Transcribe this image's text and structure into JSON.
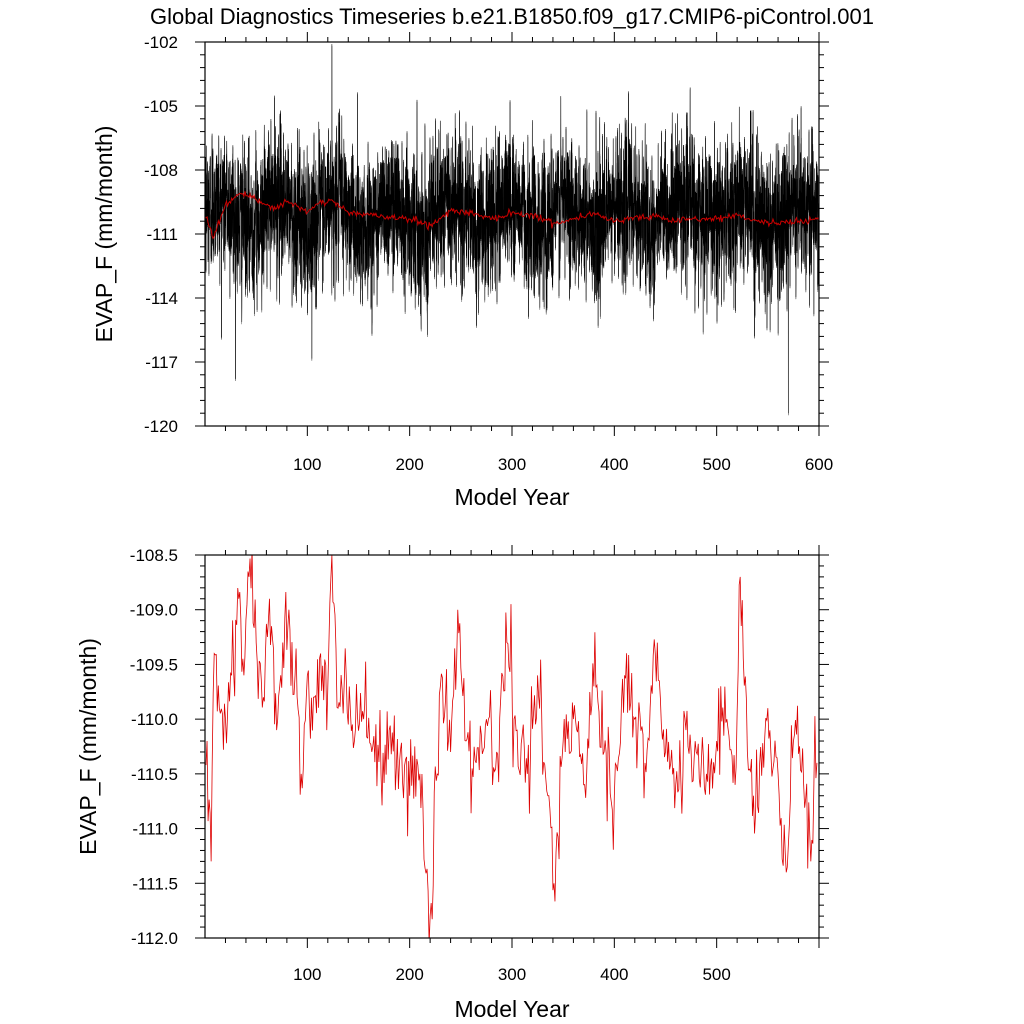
{
  "figure_title": "Global Diagnostics Timeseries b.e21.B1850.f09_g17.CMIP6-piControl.001",
  "chart_data": [
    {
      "type": "line",
      "title": "",
      "xlabel": "Model Year",
      "ylabel": "EVAP_F (mm/month)",
      "xlim": [
        0,
        600
      ],
      "ylim": [
        -120,
        -102
      ],
      "xticks": [
        100,
        200,
        300,
        400,
        500,
        600
      ],
      "xtick_labels": [
        "100",
        "200",
        "300",
        "400",
        "500",
        "600"
      ],
      "yticks": [
        -120,
        -117,
        -114,
        -111,
        -108,
        -105,
        -102
      ],
      "ytick_labels": [
        "-120",
        "-117",
        "-114",
        "-111",
        "-108",
        "-105",
        "-102"
      ],
      "grid": false,
      "legend": "none",
      "series": [
        {
          "kind": "monthly",
          "color": "#000000",
          "x_start": 0,
          "x_end": 600,
          "points_per_year": 12,
          "approx_mean": -110.0,
          "approx_range": [
            -119.4,
            -102.1
          ],
          "note": "monthly values; dense black band roughly -113 to -106, spikes to -102.1 near year 124 and -119.4 near year 570"
        },
        {
          "kind": "annual",
          "color": "#cc0000",
          "x_start": 0,
          "x_end": 600,
          "anchors_x": [
            2,
            8,
            20,
            35,
            45,
            55,
            70,
            80,
            90,
            100,
            110,
            124,
            140,
            160,
            180,
            200,
            220,
            240,
            260,
            280,
            300,
            320,
            340,
            360,
            380,
            400,
            420,
            440,
            460,
            480,
            500,
            520,
            540,
            560,
            580,
            598
          ],
          "anchors_y": [
            -110.2,
            -111.2,
            -109.6,
            -109.1,
            -109.3,
            -109.5,
            -109.8,
            -109.5,
            -109.7,
            -110.0,
            -109.6,
            -109.4,
            -110.0,
            -110.1,
            -110.2,
            -110.3,
            -110.6,
            -109.9,
            -110.0,
            -110.3,
            -110.0,
            -110.1,
            -110.5,
            -110.3,
            -110.0,
            -110.4,
            -110.2,
            -110.2,
            -110.4,
            -110.3,
            -110.3,
            -110.1,
            -110.4,
            -110.5,
            -110.4,
            -110.3
          ]
        }
      ]
    },
    {
      "type": "line",
      "title": "",
      "xlabel": "Model Year",
      "ylabel": "EVAP_F (mm/month)",
      "xlim": [
        0,
        600
      ],
      "ylim": [
        -112.0,
        -108.5
      ],
      "xticks": [
        100,
        200,
        300,
        400,
        500
      ],
      "xtick_labels": [
        "100",
        "200",
        "300",
        "400",
        "500"
      ],
      "yticks": [
        -112.0,
        -111.5,
        -111.0,
        -110.5,
        -110.0,
        -109.5,
        -109.0,
        -108.5
      ],
      "ytick_labels": [
        "-112.0",
        "-111.5",
        "-111.0",
        "-110.5",
        "-110.0",
        "-109.5",
        "-109.0",
        "-108.5"
      ],
      "grid": false,
      "legend": "none",
      "series": [
        {
          "kind": "annual",
          "color": "#dd0000",
          "x_start": 1,
          "x_end": 598,
          "anchors_x": [
            2,
            6,
            9,
            14,
            20,
            26,
            33,
            38,
            43,
            50,
            57,
            63,
            70,
            76,
            82,
            88,
            94,
            100,
            106,
            113,
            119,
            124,
            130,
            138,
            146,
            155,
            163,
            172,
            180,
            190,
            200,
            210,
            220,
            230,
            240,
            247,
            255,
            265,
            275,
            285,
            295,
            305,
            315,
            325,
            335,
            341,
            350,
            360,
            370,
            380,
            390,
            400,
            410,
            420,
            430,
            440,
            450,
            460,
            470,
            480,
            490,
            500,
            510,
            518,
            523,
            530,
            540,
            550,
            560,
            568,
            575,
            585,
            592,
            598
          ],
          "anchors_y": [
            -110.2,
            -111.3,
            -109.4,
            -109.9,
            -110.0,
            -109.6,
            -108.9,
            -109.6,
            -108.7,
            -109.3,
            -109.8,
            -108.9,
            -110.1,
            -109.3,
            -109.0,
            -109.6,
            -110.5,
            -109.6,
            -109.8,
            -109.4,
            -110.1,
            -108.5,
            -109.9,
            -109.6,
            -110.2,
            -110.0,
            -110.3,
            -110.5,
            -110.1,
            -110.4,
            -110.7,
            -110.5,
            -111.8,
            -109.7,
            -110.3,
            -109.0,
            -110.2,
            -110.4,
            -110.0,
            -110.3,
            -109.3,
            -110.1,
            -110.5,
            -109.6,
            -110.7,
            -111.5,
            -110.2,
            -110.0,
            -110.6,
            -109.7,
            -110.3,
            -110.7,
            -109.6,
            -110.0,
            -110.4,
            -109.4,
            -110.3,
            -110.6,
            -110.1,
            -110.3,
            -110.5,
            -110.2,
            -110.0,
            -110.6,
            -108.7,
            -110.3,
            -110.8,
            -109.9,
            -110.5,
            -111.4,
            -110.2,
            -110.6,
            -111.3,
            -110.4
          ]
        }
      ]
    }
  ]
}
